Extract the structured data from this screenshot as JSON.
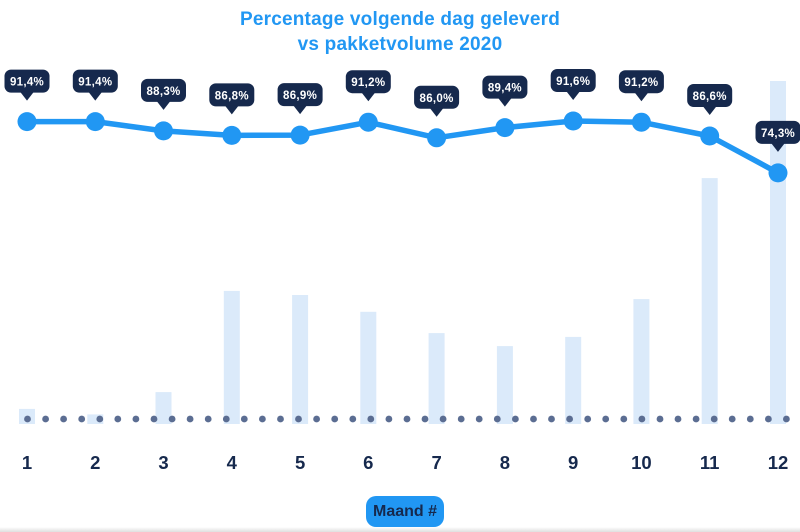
{
  "title": {
    "line1": "Percentage volgende dag geleverd",
    "line2": "vs pakketvolume 2020"
  },
  "x_axis": {
    "label_badge": "Maand #",
    "ticks": [
      "1",
      "2",
      "3",
      "4",
      "5",
      "6",
      "7",
      "8",
      "9",
      "10",
      "11",
      "12"
    ]
  },
  "chart_data": {
    "type": "combo",
    "title": "Percentage volgende dag geleverd vs pakketvolume 2020",
    "categories": [
      1,
      2,
      3,
      4,
      5,
      6,
      7,
      8,
      9,
      10,
      11,
      12
    ],
    "xlabel": "Maand #",
    "grid": false,
    "legend": "none",
    "baseline_style": "dotted",
    "series": [
      {
        "name": "Percentage volgende dag geleverd",
        "type": "line",
        "unit": "%",
        "values": [
          91.4,
          91.4,
          88.3,
          86.8,
          86.9,
          91.2,
          86.0,
          89.4,
          91.6,
          91.2,
          86.6,
          74.3
        ],
        "point_labels": [
          "91,4%",
          "91,4%",
          "88,3%",
          "86,8%",
          "86,9%",
          "91,2%",
          "86,0%",
          "89,4%",
          "91,6%",
          "91,2%",
          "86,6%",
          "74,3%"
        ]
      },
      {
        "name": "Pakketvolume 2020",
        "type": "bar",
        "unit": "percent-of-max-bar-height (geen waardeas getoond)",
        "values": [
          4.4,
          2.8,
          9.3,
          38.8,
          37.6,
          32.7,
          26.5,
          22.7,
          25.4,
          36.4,
          71.7,
          100
        ]
      }
    ]
  },
  "colors": {
    "accent_blue": "#2197f3",
    "navy": "#16294d",
    "bar_fill": "#dbeafa",
    "baseline_dot": "#5b6d92",
    "tooltip_bg": "#16294d",
    "tooltip_text": "#ffffff",
    "background": "#ffffff"
  }
}
